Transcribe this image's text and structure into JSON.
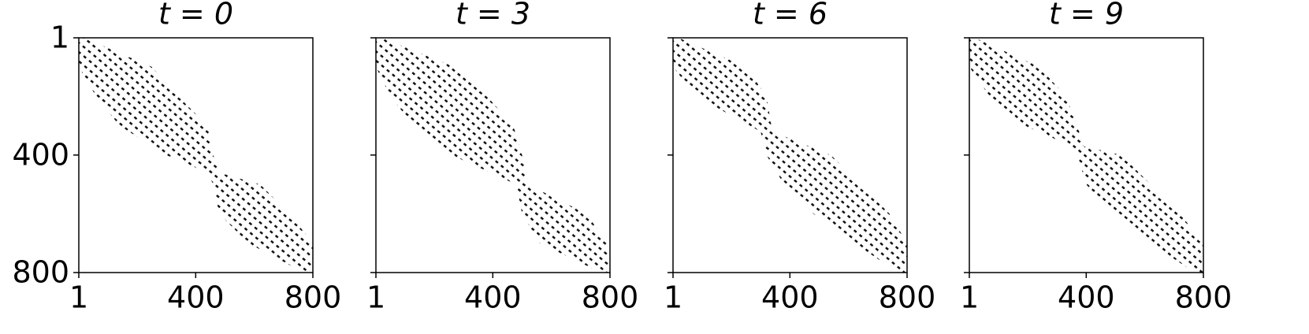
{
  "chart_data": [
    {
      "type": "spy",
      "title": "t = 0",
      "xlim": [
        1,
        800
      ],
      "ylim": [
        1,
        800
      ],
      "y_inverted": true,
      "xticks": [
        1,
        400,
        800
      ],
      "yticks": [
        1,
        400,
        800
      ],
      "ytick_labels": true,
      "color": "#000000",
      "rows": [
        1,
        100,
        200,
        300,
        400,
        460,
        500,
        600,
        700,
        800
      ],
      "col_start": [
        1,
        1,
        60,
        140,
        300,
        440,
        460,
        480,
        580,
        770
      ],
      "col_end": [
        20,
        250,
        340,
        440,
        460,
        480,
        620,
        720,
        800,
        800
      ]
    },
    {
      "type": "spy",
      "title": "t = 3",
      "xlim": [
        1,
        800
      ],
      "ylim": [
        1,
        800
      ],
      "y_inverted": true,
      "xticks": [
        1,
        400,
        800
      ],
      "yticks": [
        1,
        400,
        800
      ],
      "ytick_labels": false,
      "color": "#000000",
      "rows": [
        1,
        100,
        200,
        300,
        400,
        500,
        600,
        700,
        800
      ],
      "col_start": [
        1,
        1,
        50,
        130,
        260,
        480,
        500,
        560,
        770
      ],
      "col_end": [
        20,
        270,
        380,
        470,
        500,
        520,
        720,
        790,
        800
      ]
    },
    {
      "type": "spy",
      "title": "t = 6",
      "xlim": [
        1,
        800
      ],
      "ylim": [
        1,
        800
      ],
      "y_inverted": true,
      "xticks": [
        1,
        400,
        800
      ],
      "yticks": [
        1,
        400,
        800
      ],
      "ytick_labels": false,
      "color": "#000000",
      "rows": [
        1,
        100,
        200,
        320,
        400,
        500,
        600,
        700,
        800
      ],
      "col_start": [
        1,
        1,
        80,
        300,
        320,
        380,
        480,
        620,
        770
      ],
      "col_end": [
        20,
        250,
        320,
        340,
        540,
        640,
        740,
        800,
        800
      ]
    },
    {
      "type": "spy",
      "title": "t = 9",
      "xlim": [
        1,
        800
      ],
      "ylim": [
        1,
        800
      ],
      "y_inverted": true,
      "xticks": [
        1,
        400,
        800
      ],
      "yticks": [
        1,
        400,
        800
      ],
      "ytick_labels": false,
      "color": "#000000",
      "rows": [
        1,
        100,
        200,
        300,
        370,
        400,
        500,
        600,
        700,
        800
      ],
      "col_start": [
        1,
        1,
        70,
        190,
        350,
        370,
        400,
        490,
        620,
        770
      ],
      "col_end": [
        20,
        240,
        330,
        370,
        390,
        520,
        620,
        720,
        800,
        800
      ]
    }
  ]
}
